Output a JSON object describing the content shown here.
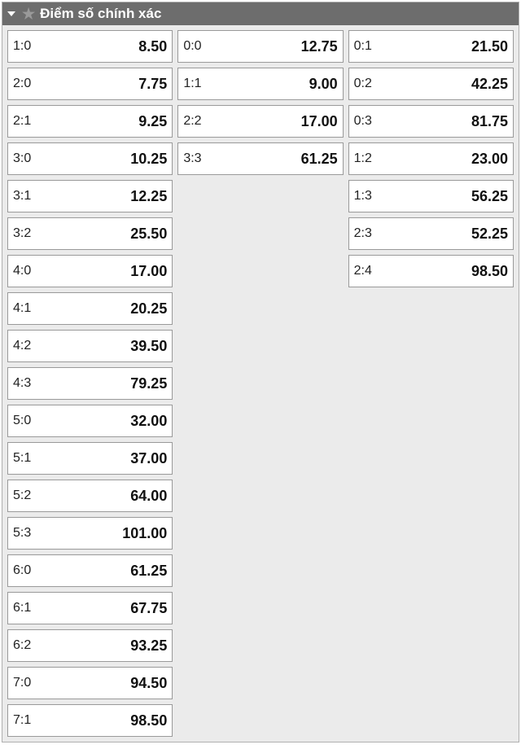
{
  "header": {
    "title": "Điểm số chính xác"
  },
  "columns": [
    [
      {
        "score": "1:0",
        "odds": "8.50"
      },
      {
        "score": "2:0",
        "odds": "7.75"
      },
      {
        "score": "2:1",
        "odds": "9.25"
      },
      {
        "score": "3:0",
        "odds": "10.25"
      },
      {
        "score": "3:1",
        "odds": "12.25"
      },
      {
        "score": "3:2",
        "odds": "25.50"
      },
      {
        "score": "4:0",
        "odds": "17.00"
      },
      {
        "score": "4:1",
        "odds": "20.25"
      },
      {
        "score": "4:2",
        "odds": "39.50"
      },
      {
        "score": "4:3",
        "odds": "79.25"
      },
      {
        "score": "5:0",
        "odds": "32.00"
      },
      {
        "score": "5:1",
        "odds": "37.00"
      },
      {
        "score": "5:2",
        "odds": "64.00"
      },
      {
        "score": "5:3",
        "odds": "101.00"
      },
      {
        "score": "6:0",
        "odds": "61.25"
      },
      {
        "score": "6:1",
        "odds": "67.75"
      },
      {
        "score": "6:2",
        "odds": "93.25"
      },
      {
        "score": "7:0",
        "odds": "94.50"
      },
      {
        "score": "7:1",
        "odds": "98.50"
      }
    ],
    [
      {
        "score": "0:0",
        "odds": "12.75"
      },
      {
        "score": "1:1",
        "odds": "9.00"
      },
      {
        "score": "2:2",
        "odds": "17.00"
      },
      {
        "score": "3:3",
        "odds": "61.25"
      }
    ],
    [
      {
        "score": "0:1",
        "odds": "21.50"
      },
      {
        "score": "0:2",
        "odds": "42.25"
      },
      {
        "score": "0:3",
        "odds": "81.75"
      },
      {
        "score": "1:2",
        "odds": "23.00"
      },
      {
        "score": "1:3",
        "odds": "56.25"
      },
      {
        "score": "2:3",
        "odds": "52.25"
      },
      {
        "score": "2:4",
        "odds": "98.50"
      }
    ]
  ],
  "colors": {
    "header_bg": "#6d6d6d",
    "header_text": "#ffffff",
    "body_bg": "#ebebeb",
    "cell_bg": "#ffffff",
    "cell_border": "#9a9a9a",
    "star_color": "#9a9a9a"
  }
}
